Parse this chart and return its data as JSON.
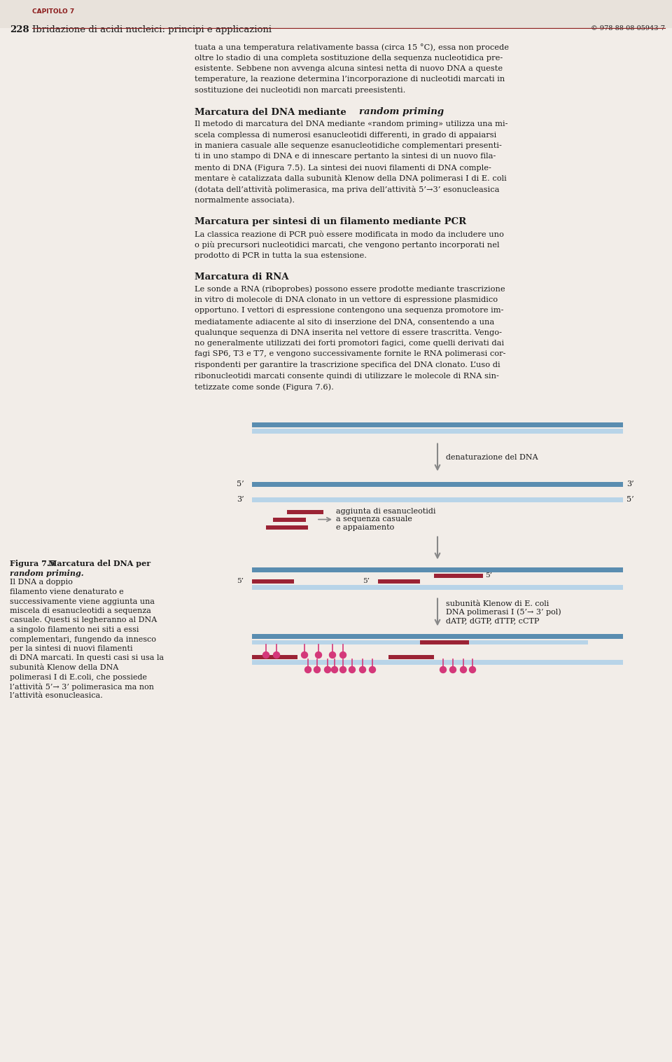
{
  "bg_color": "#f2ede8",
  "header_bg": "#e8e2db",
  "red_color": "#8b1a1a",
  "blue_dark": "#5a8db0",
  "blue_light": "#b8d4e8",
  "pink_color": "#d4387a",
  "gray_arrow": "#888888",
  "text_color": "#1a1a1a",
  "page_number": "228",
  "chapter": "CAPITOLO 7",
  "subtitle_header": "Ibridazione di acidi nucleici: principi e applicazioni",
  "isbn": "© 978-88-08-05943-7",
  "diag_label1": "denaturazione del DNA",
  "diag_label2": "aggiunta di esanucleotidi\na sequenza casuale\ne appaiamento",
  "diag_label3": "subunità Klenow di E. coli\nDNA polimerasi I (5’→ 3’ pol)\ndATP, dGTP, dTTP, cCTP"
}
